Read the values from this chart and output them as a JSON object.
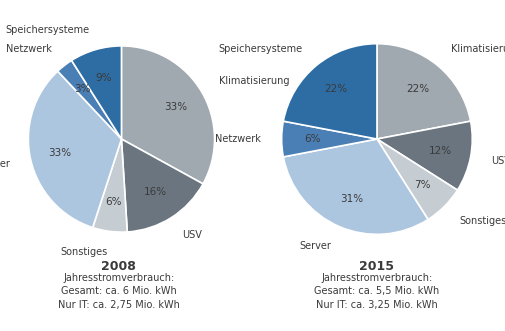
{
  "chart2008": {
    "labels": [
      "Klimatisierung",
      "USV",
      "Sonstiges",
      "Server",
      "Netzwerk",
      "Speichersysteme"
    ],
    "values": [
      33,
      16,
      6,
      33,
      3,
      9
    ],
    "colors": [
      "#a0a8b0",
      "#6b7580",
      "#c5cdd3",
      "#adc6e0",
      "#4a7fb5",
      "#2e6da4"
    ],
    "year": "2008",
    "line1": "Jahresstromverbrauch:",
    "line2": "Gesamt: ca. 6 Mio. kWh",
    "line3": "Nur IT: ca. 2,75 Mio. kWh",
    "startangle": 90
  },
  "chart2015": {
    "labels": [
      "Klimatisierung",
      "USV",
      "Sonstiges",
      "Server",
      "Netzwerk",
      "Speichersysteme"
    ],
    "values": [
      22,
      12,
      7,
      31,
      6,
      22
    ],
    "colors": [
      "#a0a8b0",
      "#6b7580",
      "#c5cdd3",
      "#adc6e0",
      "#4a7fb5",
      "#2e6da4"
    ],
    "year": "2015",
    "line1": "Jahresstromverbrauch:",
    "line2": "Gesamt: ca. 5,5 Mio. kWh",
    "line3": "Nur IT: ca. 3,25 Mio. kWh",
    "startangle": 90
  },
  "bg_color": "#ffffff",
  "text_color": "#3a3a3a",
  "label_fontsize": 7.0,
  "pct_fontsize": 7.5,
  "year_fontsize": 9,
  "info_fontsize": 7.0
}
